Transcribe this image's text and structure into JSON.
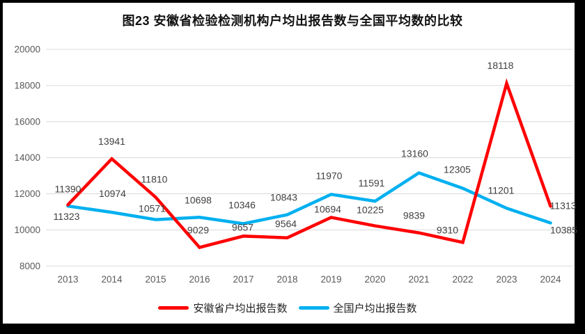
{
  "title": "图23 安徽省检验检测机构户均出报告数与全国平均数的比较",
  "chart_data": {
    "type": "line",
    "categories": [
      "2013",
      "2014",
      "2015",
      "2016",
      "2017",
      "2018",
      "2019",
      "2020",
      "2021",
      "2022",
      "2023",
      "2024"
    ],
    "series": [
      {
        "name": "安徽省户均出报告数",
        "color": "#FF0000",
        "values": [
          11390,
          13941,
          11810,
          9029,
          9657,
          9564,
          10694,
          10225,
          9839,
          9310,
          18118,
          11313
        ]
      },
      {
        "name": "全国户均出报告数",
        "color": "#00B0F0",
        "values": [
          11323,
          10974,
          10571,
          10698,
          10346,
          10843,
          11970,
          11591,
          13160,
          12305,
          11201,
          10385
        ]
      }
    ],
    "ylim": [
      8000,
      20000
    ],
    "yticks": [
      8000,
      10000,
      12000,
      14000,
      16000,
      18000,
      20000
    ],
    "grid": true,
    "grid_color": "#D9D9D9",
    "axis_label_color": "#595959",
    "data_label_color": "#404040",
    "legend_position": "bottom",
    "data_labels": true
  }
}
